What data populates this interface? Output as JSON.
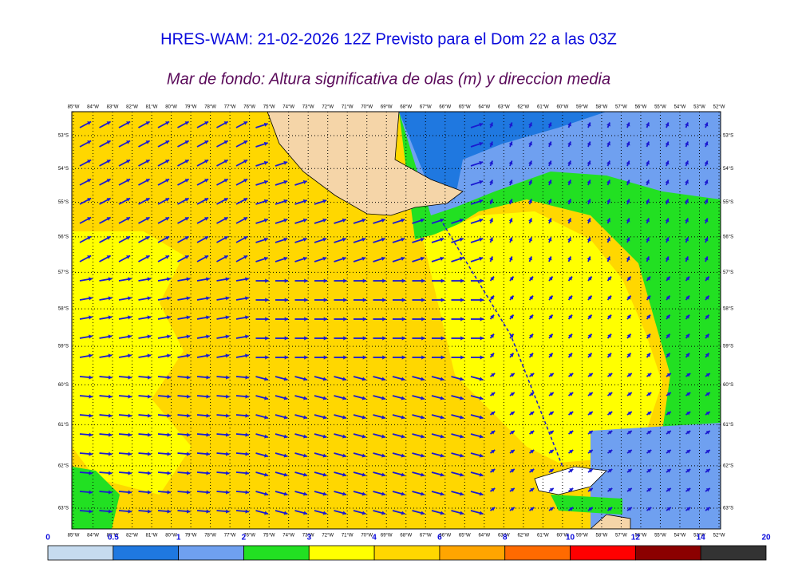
{
  "header": {
    "title": "HRES-WAM: 21-02-2026 12Z Previsto para el Dom 22 a las 03Z",
    "subtitle": "Mar de fondo: Altura significativa de olas (m) y direccion media"
  },
  "map": {
    "lon_ticks": [
      {
        "value": -85,
        "label": "85°W"
      },
      {
        "value": -84,
        "label": "84°W"
      },
      {
        "value": -83,
        "label": "83°W"
      },
      {
        "value": -82,
        "label": "82°W"
      },
      {
        "value": -81,
        "label": "81°W"
      },
      {
        "value": -80,
        "label": "80°W"
      },
      {
        "value": -79,
        "label": "79°W"
      },
      {
        "value": -78,
        "label": "78°W"
      },
      {
        "value": -77,
        "label": "77°W"
      },
      {
        "value": -76,
        "label": "76°W"
      },
      {
        "value": -75,
        "label": "75°W"
      },
      {
        "value": -74,
        "label": "74°W"
      },
      {
        "value": -73,
        "label": "73°W"
      },
      {
        "value": -72,
        "label": "72°W"
      },
      {
        "value": -71,
        "label": "71°W"
      },
      {
        "value": -70,
        "label": "70°W"
      },
      {
        "value": -69,
        "label": "69°W"
      },
      {
        "value": -68,
        "label": "68°W"
      },
      {
        "value": -67,
        "label": "67°W"
      },
      {
        "value": -66,
        "label": "66°W"
      },
      {
        "value": -65,
        "label": "65°W"
      },
      {
        "value": -64,
        "label": "64°W"
      },
      {
        "value": -63,
        "label": "63°W"
      },
      {
        "value": -62,
        "label": "62°W"
      },
      {
        "value": -61,
        "label": "61°W"
      },
      {
        "value": -60,
        "label": "60°W"
      },
      {
        "value": -59,
        "label": "59°W"
      },
      {
        "value": -58,
        "label": "58°W"
      },
      {
        "value": -57,
        "label": "57°W"
      },
      {
        "value": -56,
        "label": "56°W"
      },
      {
        "value": -55,
        "label": "55°W"
      },
      {
        "value": -54,
        "label": "54°W"
      },
      {
        "value": -53,
        "label": "53°W"
      },
      {
        "value": -52,
        "label": "52°W"
      }
    ],
    "lat_ticks": [
      {
        "value": -53,
        "label": "53°S"
      },
      {
        "value": -54,
        "label": "54°S"
      },
      {
        "value": -55,
        "label": "55°S"
      },
      {
        "value": -56,
        "label": "56°S"
      },
      {
        "value": -57,
        "label": "57°S"
      },
      {
        "value": -58,
        "label": "58°S"
      },
      {
        "value": -59,
        "label": "59°S"
      },
      {
        "value": -60,
        "label": "60°S"
      },
      {
        "value": -61,
        "label": "61°S"
      },
      {
        "value": -62,
        "label": "62°S"
      },
      {
        "value": -63,
        "label": "63°S"
      }
    ]
  },
  "colorbar": {
    "levels": [
      0,
      0.5,
      1,
      2,
      3,
      4,
      6,
      8,
      10,
      12,
      14,
      20
    ],
    "colors": [
      "#c6dbef",
      "#1f78e0",
      "#6fa0f0",
      "#22e022",
      "#ffff00",
      "#ffd700",
      "#ffa500",
      "#ff6a00",
      "#ff0000",
      "#8b0000",
      "#333333"
    ]
  }
}
